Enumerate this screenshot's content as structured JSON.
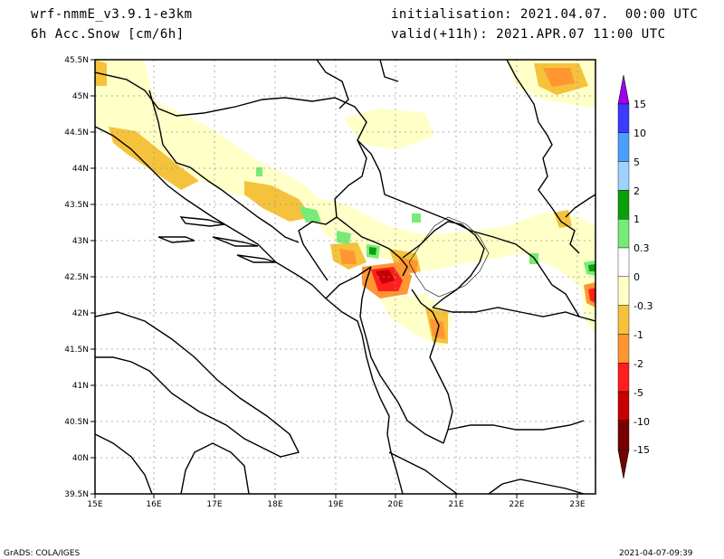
{
  "header": {
    "model": "wrf-nmmE_v3.9.1-e3km",
    "field": "6h Acc.Snow [cm/6h]",
    "init": "initialisation: 2021.04.07.  00:00 UTC",
    "valid": "valid(+11h): 2021.APR.07 11:00 UTC"
  },
  "footer": {
    "left": "GrADS: COLA/IGES",
    "right": "2021-04-07-09:39"
  },
  "map": {
    "lon_labels": [
      "15E",
      "16E",
      "17E",
      "18E",
      "19E",
      "20E",
      "21E",
      "22E",
      "23E"
    ],
    "lat_labels": [
      "45.5N",
      "45N",
      "44.5N",
      "44N",
      "43.5N",
      "43N",
      "42.5N",
      "42N",
      "41.5N",
      "41N",
      "40.5N",
      "40N",
      "39.5N"
    ]
  },
  "legend": {
    "labels": [
      "15",
      "10",
      "5",
      "2",
      "1",
      "0.3",
      "0",
      "-0.3",
      "-1",
      "-2",
      "-5",
      "-10",
      "-15"
    ],
    "colors": [
      "#a000f0",
      "#3c3cff",
      "#4ba0ff",
      "#a0d2ff",
      "#0aa00a",
      "#78ea78",
      "#ffffff",
      "#ffffc8",
      "#f5c23c",
      "#ff9632",
      "#ff1e1e",
      "#c80000",
      "#780000"
    ]
  }
}
